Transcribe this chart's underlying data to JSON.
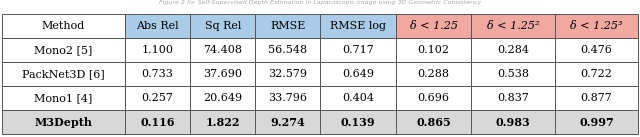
{
  "title_above": "Figure 2 for Self-Supervised Depth Estimation in Laparoscopic Image using 3D Geometric Consistency",
  "col_headers": [
    "Method",
    "Abs Rel",
    "Sq Rel",
    "RMSE",
    "RMSE log",
    "δ < 1.25",
    "δ < 1.25²",
    "δ < 1.25³"
  ],
  "header_bg_white": "#ffffff",
  "header_bg_blue": "#aacce8",
  "header_bg_pink": "#f0a8a0",
  "rows": [
    [
      "Mono2 [5]",
      "1.100",
      "74.408",
      "56.548",
      "0.717",
      "0.102",
      "0.284",
      "0.476"
    ],
    [
      "PackNet3D [6]",
      "0.733",
      "37.690",
      "32.579",
      "0.649",
      "0.288",
      "0.538",
      "0.722"
    ],
    [
      "Mono1 [4]",
      "0.257",
      "20.649",
      "33.796",
      "0.404",
      "0.696",
      "0.837",
      "0.877"
    ],
    [
      "M3Depth",
      "0.116",
      "1.822",
      "9.274",
      "0.139",
      "0.865",
      "0.983",
      "0.997"
    ]
  ],
  "last_row_bold": true,
  "last_row_bg": "#d8d8d8",
  "row_bg": "#ffffff",
  "border_color": "#555555",
  "text_color": "#000000",
  "figsize": [
    6.4,
    1.37
  ],
  "dpi": 100,
  "col_widths_rel": [
    1.55,
    0.82,
    0.82,
    0.82,
    0.95,
    0.95,
    1.05,
    1.05
  ],
  "blue_cols": [
    1,
    2,
    3,
    4
  ],
  "pink_cols": [
    5,
    6,
    7
  ],
  "title_fontsize": 4.5,
  "cell_fontsize": 8.0,
  "header_fontsize": 8.0
}
